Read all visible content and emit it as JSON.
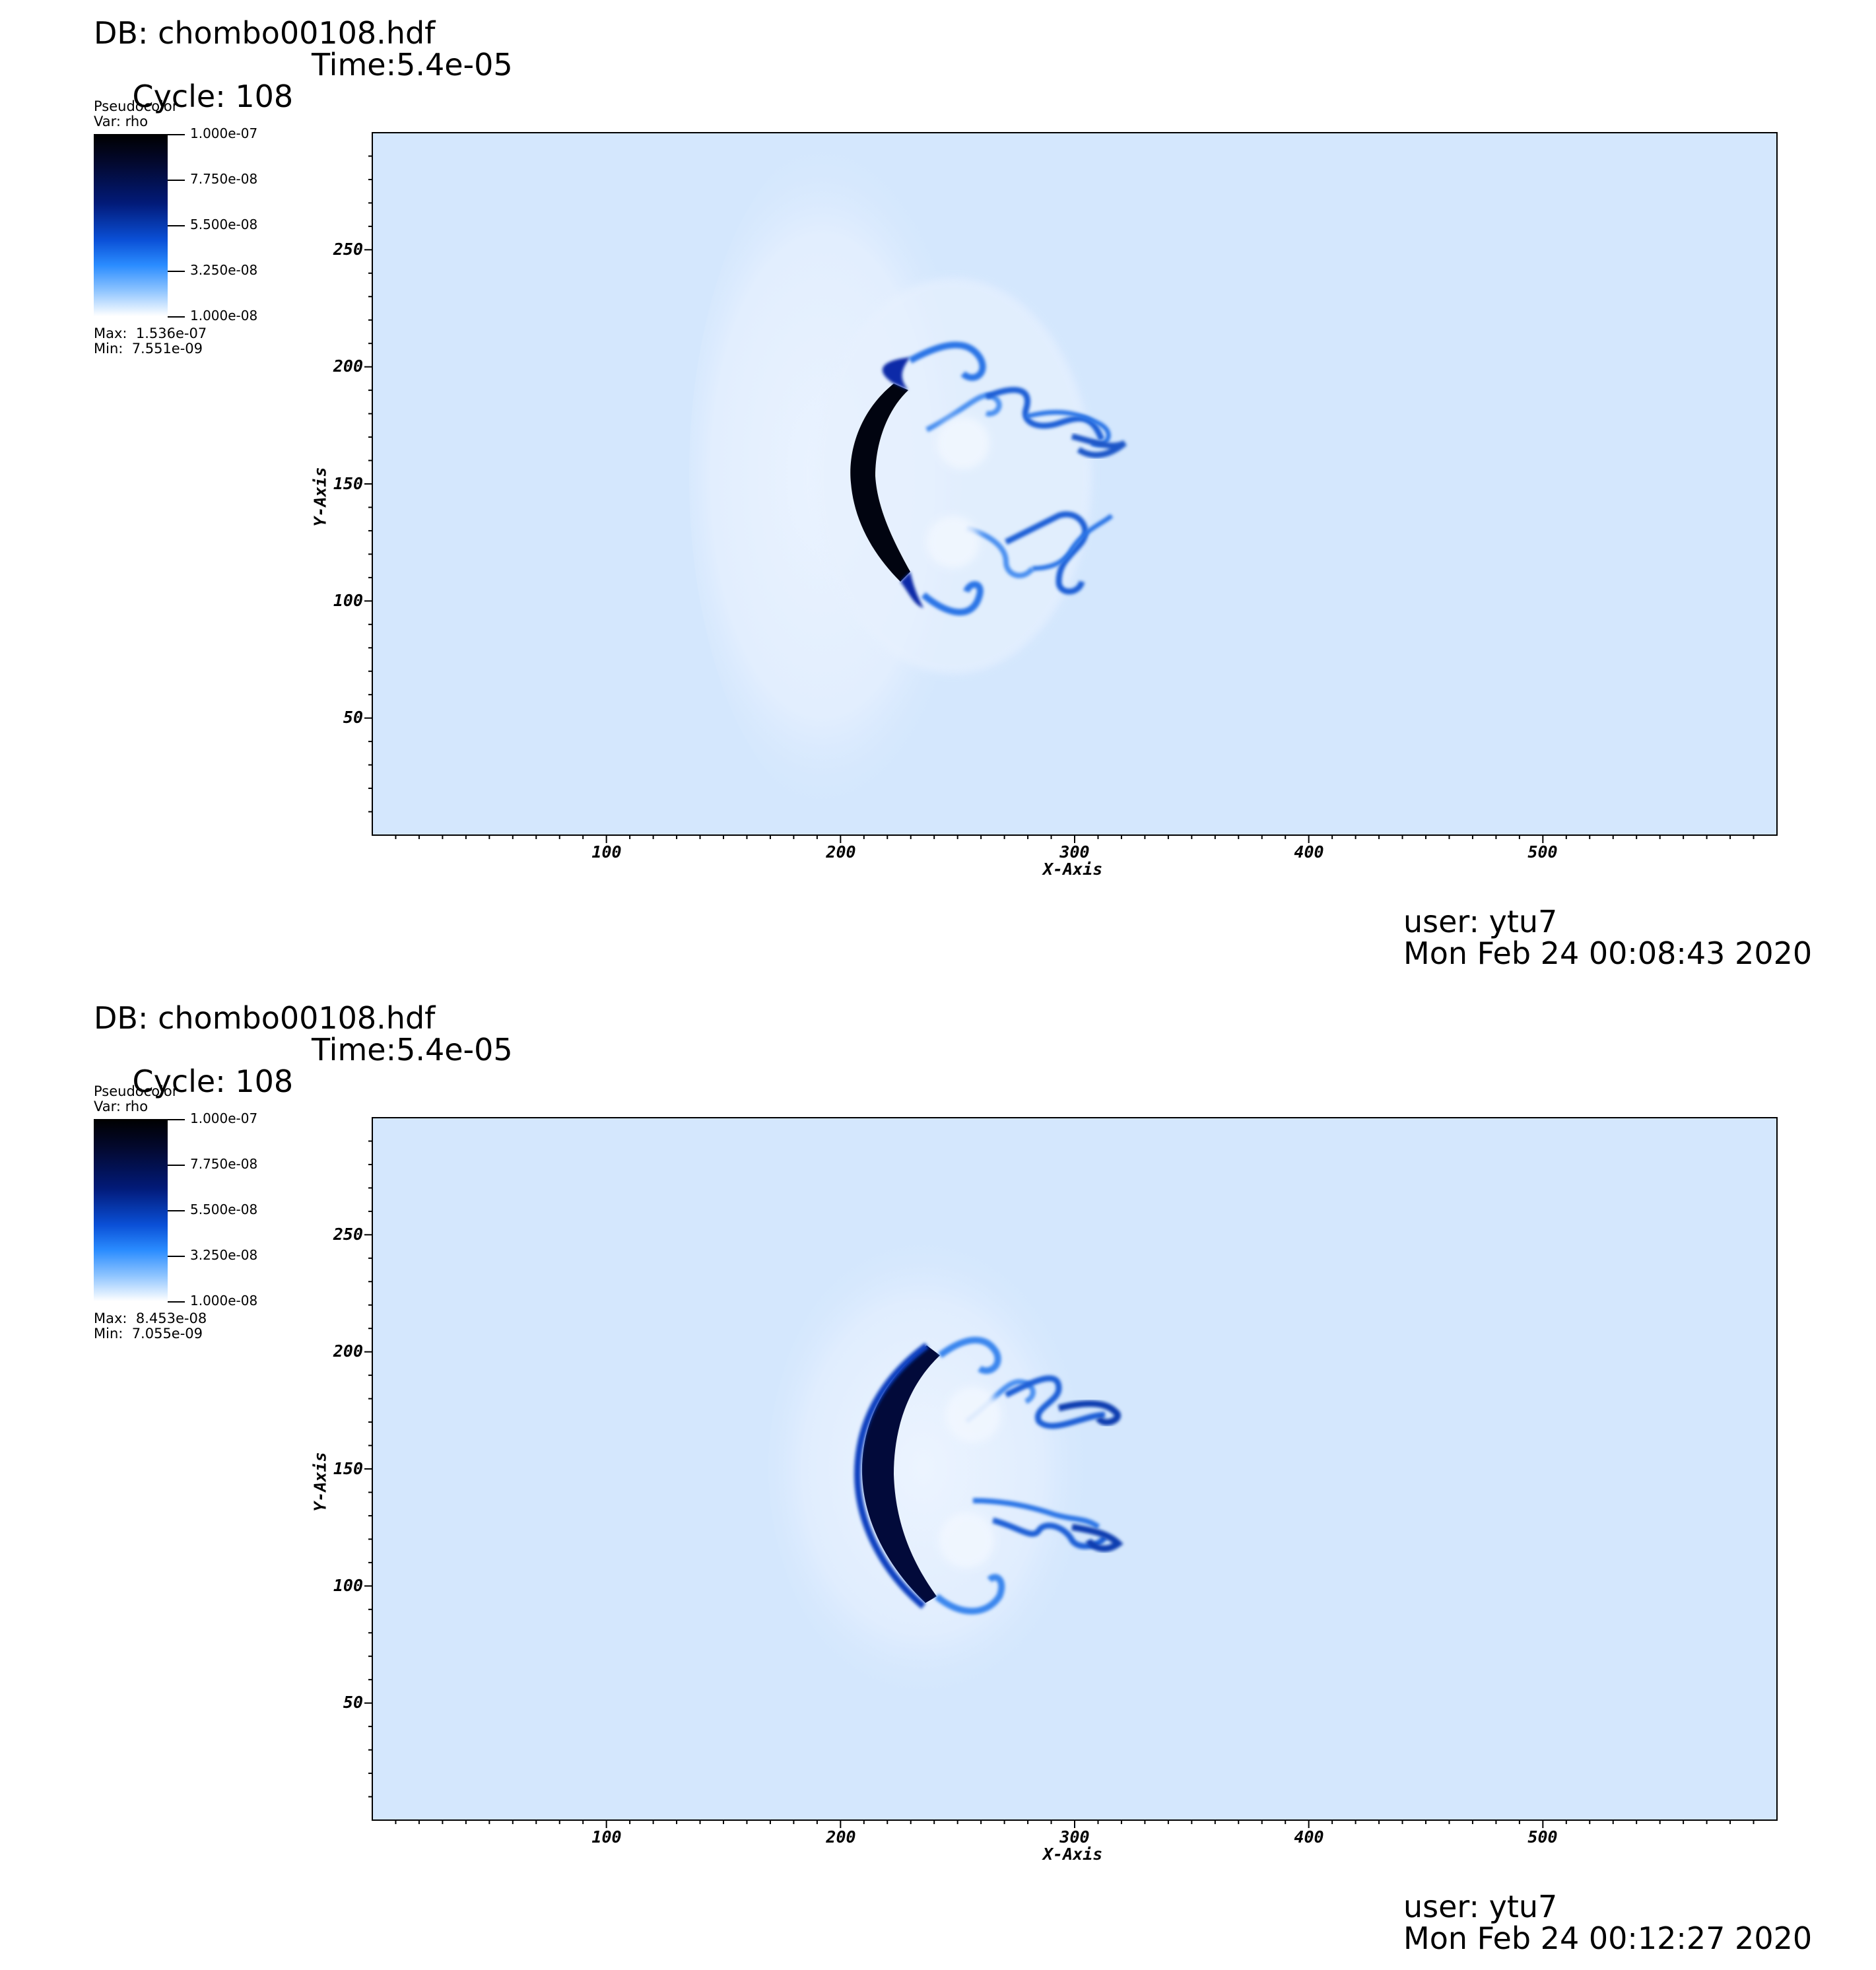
{
  "panels": [
    {
      "db": "DB: chombo00108.hdf",
      "cycle": "Cycle: 108",
      "time": "Time:5.4e-05",
      "legend": {
        "title": "Pseudocolor",
        "var": "Var: rho",
        "ticks": [
          "1.000e-07",
          "7.750e-08",
          "5.500e-08",
          "3.250e-08",
          "1.000e-08"
        ],
        "max": "Max:  1.536e-07",
        "min": "Min:  7.551e-09"
      },
      "x_axis": {
        "title": "X-Axis",
        "ticks": [
          "100",
          "200",
          "300",
          "400",
          "500"
        ]
      },
      "y_axis": {
        "title": "Y-Axis",
        "ticks": [
          "250",
          "200",
          "150",
          "100",
          "50"
        ]
      },
      "user": "user: ytu7",
      "date": "Mon Feb 24 00:08:43 2020"
    },
    {
      "db": "DB: chombo00108.hdf",
      "cycle": "Cycle: 108",
      "time": "Time:5.4e-05",
      "legend": {
        "title": "Pseudocolor",
        "var": "Var: rho",
        "ticks": [
          "1.000e-07",
          "7.750e-08",
          "5.500e-08",
          "3.250e-08",
          "1.000e-08"
        ],
        "max": "Max:  8.453e-08",
        "min": "Min:  7.055e-09"
      },
      "x_axis": {
        "title": "X-Axis",
        "ticks": [
          "100",
          "200",
          "300",
          "400",
          "500"
        ]
      },
      "y_axis": {
        "title": "Y-Axis",
        "ticks": [
          "250",
          "200",
          "150",
          "100",
          "50"
        ]
      },
      "user": "user: ytu7",
      "date": "Mon Feb 24 00:12:27 2020"
    }
  ],
  "colors": {
    "background_field": "#d4e7fd",
    "dense_core": "#020617",
    "mid_blue": "#1763d9",
    "light_swirl": "#eaf3ff"
  },
  "axis_ranges": {
    "x": [
      0,
      600
    ],
    "y": [
      0,
      300
    ],
    "x_tick_values": [
      100,
      200,
      300,
      400,
      500
    ],
    "y_tick_values": [
      250,
      200,
      150,
      100,
      50
    ]
  }
}
